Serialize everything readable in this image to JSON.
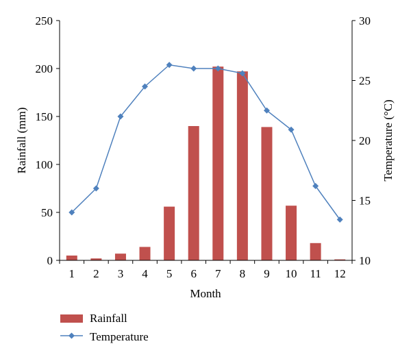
{
  "chart_data": {
    "type": "bar",
    "categories": [
      "1",
      "2",
      "3",
      "4",
      "5",
      "6",
      "7",
      "8",
      "9",
      "10",
      "11",
      "12"
    ],
    "series": [
      {
        "name": "Rainfall",
        "type": "bar",
        "axis": "left",
        "color": "#c0504d",
        "values": [
          5,
          2,
          7,
          14,
          56,
          140,
          202,
          197,
          139,
          57,
          18,
          1
        ]
      },
      {
        "name": "Temperature",
        "type": "line",
        "axis": "right",
        "color": "#4f81bd",
        "marker": "diamond",
        "values": [
          14.0,
          16.0,
          22.0,
          24.5,
          26.3,
          26.0,
          26.0,
          25.6,
          22.5,
          20.9,
          16.2,
          13.4
        ]
      }
    ],
    "xlabel": "Month",
    "ylabel": "Rainfall (mm)",
    "y2label": "Temperature (°C)",
    "ylim": [
      0,
      250
    ],
    "yticks": [
      0,
      50,
      100,
      150,
      200,
      250
    ],
    "y2lim": [
      10,
      30
    ],
    "y2ticks": [
      10,
      15,
      20,
      25,
      30
    ],
    "grid": false,
    "legend": "bottom-left"
  }
}
